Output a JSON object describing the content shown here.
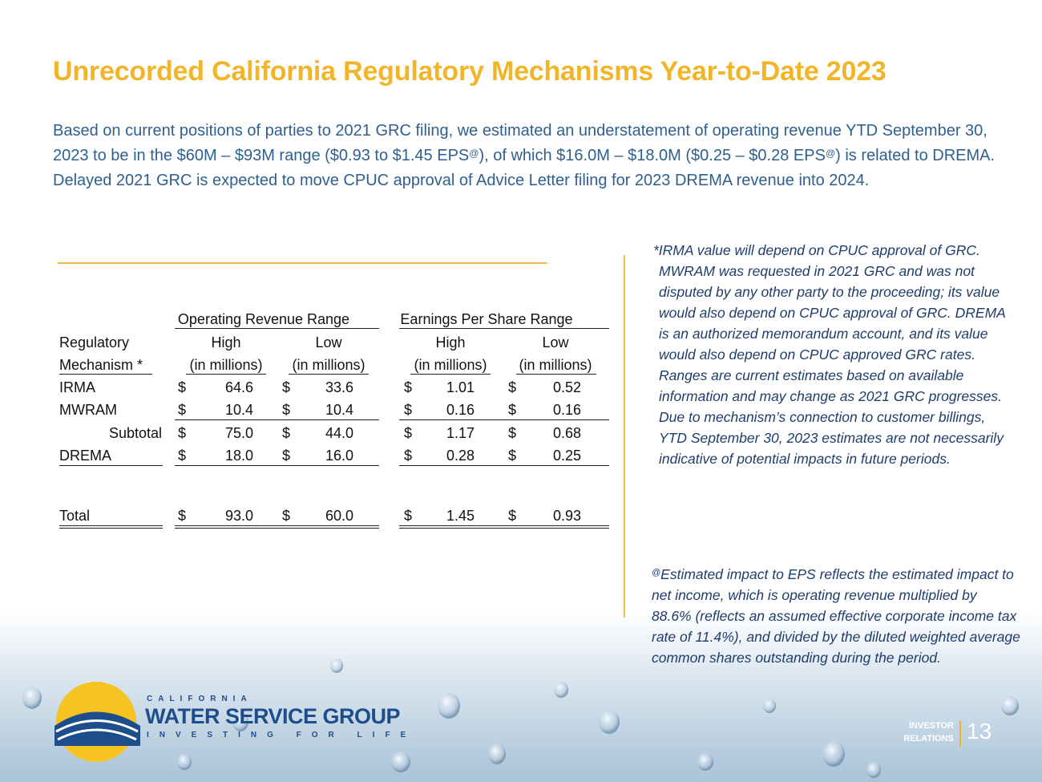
{
  "title": "Unrecorded California Regulatory Mechanisms Year-to-Date 2023",
  "intro": [
    "Based on current positions of parties to 2021 GRC filing, we estimated an understatement of operating revenue YTD September 30, 2023 to be in the $60M – $93M range ($0.93 to $1.45 EPS",
    "@",
    "), of which $16.0M – $18.0M ($0.25 – $0.28 EPS",
    "@",
    ") is related to DREMA.  Delayed 2021 GRC is expected to move CPUC approval of Advice Letter filing for 2023 DREMA revenue into 2024."
  ],
  "table": {
    "group_headers": [
      "Operating Revenue Range",
      "Earnings Per Share Range"
    ],
    "header_row1": [
      "Regulatory",
      "High",
      "Low",
      "High",
      "Low"
    ],
    "header_row2": [
      "Mechanism *",
      "(in millions)",
      "(in millions)",
      "(in millions)",
      "(in millions)"
    ],
    "rows": [
      [
        "IRMA",
        "$",
        "64.6",
        "$",
        "33.6",
        "$",
        "1.01",
        "$",
        "0.52"
      ],
      [
        "MWRAM",
        "$",
        "10.4",
        "$",
        "10.4",
        "$",
        "0.16",
        "$",
        "0.16"
      ],
      [
        "Subtotal",
        "$",
        "75.0",
        "$",
        "44.0",
        "$",
        "1.17",
        "$",
        "0.68"
      ],
      [
        "DREMA",
        "$",
        "18.0",
        "$",
        "16.0",
        "$",
        "0.28",
        "$",
        "0.25"
      ],
      [
        "Total",
        "$",
        "93.0",
        "$",
        "60.0",
        "$",
        "1.45",
        "$",
        "0.93"
      ]
    ]
  },
  "note1": "*IRMA value will depend on CPUC approval of GRC. MWRAM was requested in 2021 GRC and was not disputed by any other party to the proceeding; its value would also depend on CPUC approval of GRC. DREMA is an authorized memorandum account, and its value would also depend on CPUC approved GRC rates. Ranges are current estimates based on available information and may change as 2021 GRC progresses. Due to mechanism’s connection to customer billings, YTD September 30, 2023 estimates are not necessarily indicative of potential impacts in future periods.",
  "note2": {
    "sup": "@",
    "text": "Estimated impact to EPS reflects the estimated impact to net income, which is operating revenue multiplied by 88.6% (reflects an assumed effective corporate income tax rate of 11.4%), and divided by the diluted weighted average common shares outstanding during the period."
  },
  "logo": {
    "top": "CALIFORNIA",
    "name": "WATER SERVICE GROUP",
    "tagline": "INVESTING FOR LIFE"
  },
  "footer": {
    "label_line1": "INVESTOR",
    "label_line2": "RELATIONS",
    "page": "13"
  }
}
